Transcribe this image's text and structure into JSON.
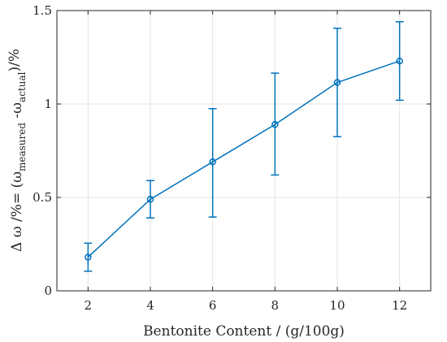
{
  "chart_data": {
    "type": "line",
    "xlabel": "Bentonite Content / (g/100g)",
    "ylabel": {
      "prefix": "Δ ω /%= (ω",
      "sub1": "measured",
      "mid": " -ω",
      "sub2": "actual",
      "suffix": ")/%"
    },
    "xlim": [
      1,
      13
    ],
    "ylim": [
      0,
      1.5
    ],
    "x_ticks": [
      2,
      4,
      6,
      8,
      10,
      12
    ],
    "y_ticks": [
      0,
      0.5,
      1,
      1.5
    ],
    "y_tick_labels": [
      "0",
      "0.5",
      "1",
      "1.5"
    ],
    "grid": true,
    "color": "#0072BD",
    "series": [
      {
        "x": [
          2,
          4,
          6,
          8,
          10,
          12
        ],
        "y": [
          0.18,
          0.49,
          0.69,
          0.89,
          1.115,
          1.23
        ],
        "err_low": [
          0.105,
          0.39,
          0.395,
          0.62,
          0.825,
          1.02
        ],
        "err_high": [
          0.255,
          0.59,
          0.975,
          1.165,
          1.405,
          1.44
        ]
      }
    ]
  }
}
